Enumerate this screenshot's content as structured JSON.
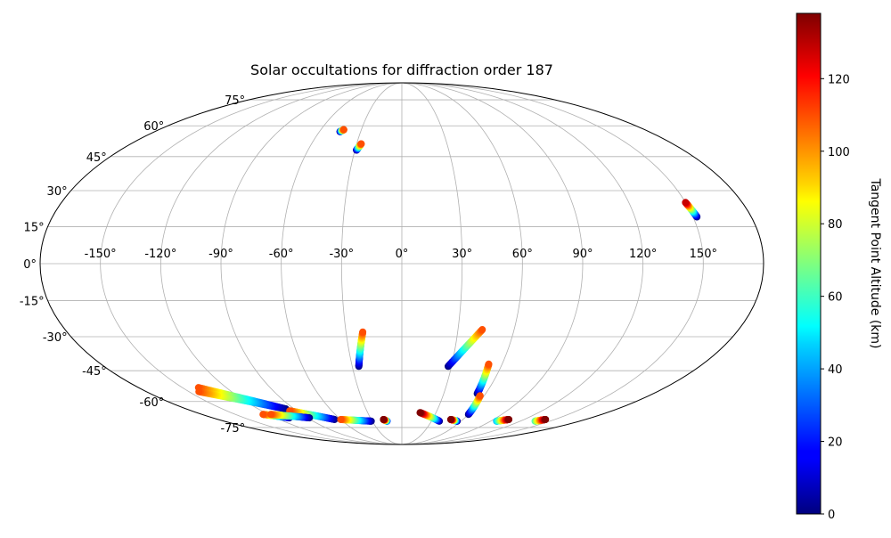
{
  "chart_data": {
    "type": "scatter",
    "projection": "mollweide",
    "title": "Solar occultations for diffraction order 187",
    "grid": true,
    "lon_ticks": [
      -150,
      -120,
      -90,
      -60,
      -30,
      0,
      30,
      60,
      90,
      120,
      150
    ],
    "lat_ticks": [
      -75,
      -60,
      -45,
      -30,
      -15,
      0,
      15,
      30,
      45,
      60,
      75
    ],
    "lon_tick_labels": [
      "-150°",
      "-120°",
      "-90°",
      "-60°",
      "-30°",
      "0°",
      "30°",
      "60°",
      "90°",
      "120°",
      "150°"
    ],
    "lat_tick_labels": [
      "-75°",
      "-60°",
      "-45°",
      "-30°",
      "-15°",
      "0°",
      "15°",
      "30°",
      "45°",
      "60°",
      "75°"
    ],
    "colorbar": {
      "label": "Tangent Point Altitude (km)",
      "range": [
        0,
        138
      ],
      "ticks": [
        0,
        20,
        40,
        60,
        80,
        100,
        120
      ],
      "tick_labels": [
        "0",
        "20",
        "40",
        "60",
        "80",
        "100",
        "120"
      ],
      "colormap": "jet"
    },
    "occultations": [
      {
        "start": {
          "lon": -45,
          "lat": 57,
          "alt": 0
        },
        "end": {
          "lon": -43,
          "lat": 58,
          "alt": 110
        }
      },
      {
        "start": {
          "lon": -29,
          "lat": 48,
          "alt": 0
        },
        "end": {
          "lon": -27,
          "lat": 51,
          "alt": 110
        }
      },
      {
        "start": {
          "lon": 152,
          "lat": 19,
          "alt": 0
        },
        "end": {
          "lon": 150,
          "lat": 25,
          "alt": 128
        }
      },
      {
        "start": {
          "lon": -26,
          "lat": -43,
          "alt": 0
        },
        "end": {
          "lon": -21,
          "lat": -28,
          "alt": 110
        }
      },
      {
        "start": {
          "lon": 28,
          "lat": -43,
          "alt": 0
        },
        "end": {
          "lon": 43,
          "lat": -27,
          "alt": 110
        }
      },
      {
        "start": {
          "lon": 54,
          "lat": -56,
          "alt": 0
        },
        "end": {
          "lon": 52,
          "lat": -42,
          "alt": 110
        }
      },
      {
        "start": {
          "lon": 60,
          "lat": -67,
          "alt": 0
        },
        "end": {
          "lon": 57,
          "lat": -57,
          "alt": 110
        }
      },
      {
        "start": {
          "lon": -97,
          "lat": -64,
          "alt": 0
        },
        "end": {
          "lon": -139,
          "lat": -53,
          "alt": 110
        }
      },
      {
        "start": {
          "lon": -97,
          "lat": -64,
          "alt": 0
        },
        "end": {
          "lon": -143,
          "lat": -55,
          "alt": 110
        }
      },
      {
        "start": {
          "lon": -66,
          "lat": -70,
          "alt": 0
        },
        "end": {
          "lon": -96,
          "lat": -65,
          "alt": 110
        }
      },
      {
        "start": {
          "lon": -107,
          "lat": -69,
          "alt": 0
        },
        "end": {
          "lon": -125,
          "lat": -67,
          "alt": 110
        }
      },
      {
        "start": {
          "lon": -88,
          "lat": -69,
          "alt": 0
        },
        "end": {
          "lon": -118,
          "lat": -67,
          "alt": 110
        }
      },
      {
        "start": {
          "lon": -31,
          "lat": -71,
          "alt": 0
        },
        "end": {
          "lon": -60,
          "lat": -70,
          "alt": 110
        }
      },
      {
        "start": {
          "lon": -15,
          "lat": -71,
          "alt": 20
        },
        "end": {
          "lon": -18,
          "lat": -70,
          "alt": 138
        }
      },
      {
        "start": {
          "lon": 38,
          "lat": -71,
          "alt": 0
        },
        "end": {
          "lon": 16,
          "lat": -66,
          "alt": 138
        }
      },
      {
        "start": {
          "lon": 56,
          "lat": -71,
          "alt": 0
        },
        "end": {
          "lon": 48,
          "lat": -70,
          "alt": 138
        }
      },
      {
        "start": {
          "lon": 96,
          "lat": -71,
          "alt": 40
        },
        "end": {
          "lon": 105,
          "lat": -70,
          "alt": 138
        }
      },
      {
        "start": {
          "lon": 135,
          "lat": -71,
          "alt": 60
        },
        "end": {
          "lon": 141,
          "lat": -70,
          "alt": 138
        }
      }
    ]
  }
}
